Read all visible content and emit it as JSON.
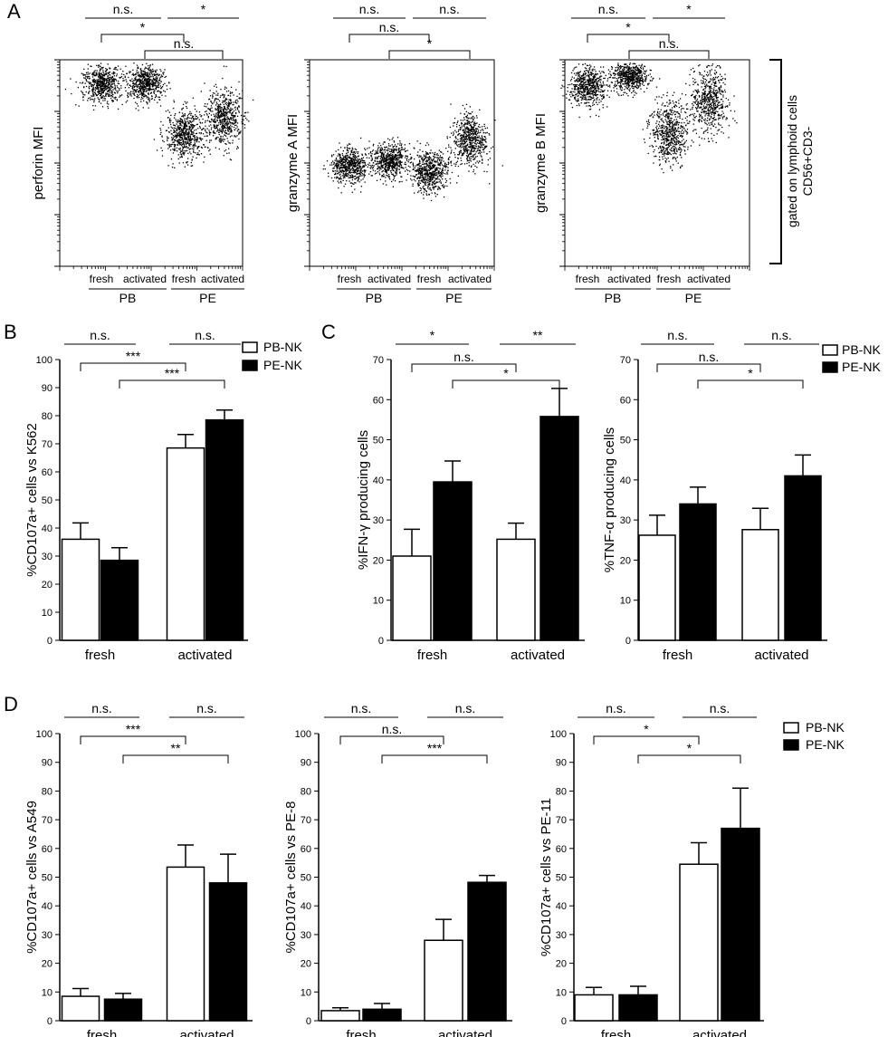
{
  "panels": {
    "A": "A",
    "B": "B",
    "C": "C",
    "D": "D"
  },
  "groups": [
    "PB",
    "PE"
  ],
  "conditions": [
    "fresh",
    "activated"
  ],
  "legend": [
    "PB-NK",
    "PE-NK"
  ],
  "colors": {
    "pb": "#ffffff",
    "pe": "#000000",
    "axis": "#000000"
  },
  "gating_note": [
    "gated on lymphoid cells",
    "CD56+CD3-"
  ],
  "chart_data": [
    {
      "id": "A1",
      "panel": "A",
      "type": "scatter",
      "scale": "log",
      "ylabel": "perforin MFI",
      "categories": [
        "fresh",
        "activated",
        "fresh",
        "activated"
      ],
      "group_labels": [
        "PB",
        "PE"
      ],
      "log_centers": [
        3.55,
        3.55,
        2.55,
        2.9
      ],
      "log_spread": [
        0.35,
        0.3,
        0.45,
        0.5
      ],
      "annotations": [
        {
          "a": 0,
          "b": 1,
          "text": "n.s."
        },
        {
          "a": 2,
          "b": 3,
          "text": "*"
        },
        {
          "a": 0,
          "b": 2,
          "text": "*"
        },
        {
          "a": 1,
          "b": 3,
          "text": "n.s."
        }
      ]
    },
    {
      "id": "A2",
      "panel": "A",
      "type": "scatter",
      "scale": "log",
      "ylabel": "granzyme A MFI",
      "categories": [
        "fresh",
        "activated",
        "fresh",
        "activated"
      ],
      "group_labels": [
        "PB",
        "PE"
      ],
      "log_centers": [
        1.95,
        2.05,
        1.85,
        2.45
      ],
      "log_spread": [
        0.3,
        0.3,
        0.35,
        0.45
      ],
      "annotations": [
        {
          "a": 0,
          "b": 1,
          "text": "n.s."
        },
        {
          "a": 2,
          "b": 3,
          "text": "n.s."
        },
        {
          "a": 0,
          "b": 2,
          "text": "n.s."
        },
        {
          "a": 1,
          "b": 3,
          "text": "*"
        }
      ]
    },
    {
      "id": "A3",
      "panel": "A",
      "type": "scatter",
      "scale": "log",
      "ylabel": "granzyme B MFI",
      "categories": [
        "fresh",
        "activated",
        "fresh",
        "activated"
      ],
      "group_labels": [
        "PB",
        "PE"
      ],
      "log_centers": [
        3.5,
        3.7,
        2.6,
        3.2
      ],
      "log_spread": [
        0.35,
        0.25,
        0.55,
        0.6
      ],
      "annotations": [
        {
          "a": 0,
          "b": 1,
          "text": "n.s."
        },
        {
          "a": 2,
          "b": 3,
          "text": "*"
        },
        {
          "a": 0,
          "b": 2,
          "text": "*"
        },
        {
          "a": 1,
          "b": 3,
          "text": "n.s."
        }
      ]
    },
    {
      "id": "B",
      "panel": "B",
      "type": "bar",
      "ylabel": "%CD107a+ cells vs K562",
      "ylim": [
        0,
        100
      ],
      "ytick_step": 10,
      "categories": [
        "fresh",
        "activated"
      ],
      "series": [
        {
          "name": "PB-NK",
          "values": [
            36,
            68.5
          ],
          "errors": [
            5.8,
            4.8
          ]
        },
        {
          "name": "PE-NK",
          "values": [
            28.5,
            78.5
          ],
          "errors": [
            4.5,
            3.5
          ]
        }
      ],
      "annotations": [
        {
          "a": 0,
          "b": 1,
          "text": "n.s."
        },
        {
          "a": 2,
          "b": 3,
          "text": "n.s."
        },
        {
          "a": 0,
          "b": 2,
          "text": "***"
        },
        {
          "a": 1,
          "b": 3,
          "text": "***"
        }
      ],
      "legend": true
    },
    {
      "id": "C1",
      "panel": "C",
      "type": "bar",
      "ylabel": "%IFN-γ producing cells",
      "ylim": [
        0,
        70
      ],
      "ytick_step": 10,
      "categories": [
        "fresh",
        "activated"
      ],
      "series": [
        {
          "name": "PB-NK",
          "values": [
            21,
            25.2
          ],
          "errors": [
            6.7,
            4.0
          ]
        },
        {
          "name": "PE-NK",
          "values": [
            39.5,
            55.8
          ],
          "errors": [
            5.2,
            7.0
          ]
        }
      ],
      "annotations": [
        {
          "a": 0,
          "b": 1,
          "text": "*"
        },
        {
          "a": 2,
          "b": 3,
          "text": "**"
        },
        {
          "a": 0,
          "b": 2,
          "text": "n.s."
        },
        {
          "a": 1,
          "b": 3,
          "text": "*"
        }
      ]
    },
    {
      "id": "C2",
      "panel": "C",
      "type": "bar",
      "ylabel": "%TNF-α producing cells",
      "ylim": [
        0,
        70
      ],
      "ytick_step": 10,
      "categories": [
        "fresh",
        "activated"
      ],
      "series": [
        {
          "name": "PB-NK",
          "values": [
            26.2,
            27.6
          ],
          "errors": [
            5.0,
            5.3
          ]
        },
        {
          "name": "PE-NK",
          "values": [
            34,
            41
          ],
          "errors": [
            4.2,
            5.2
          ]
        }
      ],
      "annotations": [
        {
          "a": 0,
          "b": 1,
          "text": "n.s."
        },
        {
          "a": 2,
          "b": 3,
          "text": "n.s."
        },
        {
          "a": 0,
          "b": 2,
          "text": "n.s."
        },
        {
          "a": 1,
          "b": 3,
          "text": "*"
        }
      ],
      "legend": true
    },
    {
      "id": "D1",
      "panel": "D",
      "type": "bar",
      "ylabel": "%CD107a+ cells vs A549",
      "ylim": [
        0,
        100
      ],
      "ytick_step": 10,
      "categories": [
        "fresh",
        "activated"
      ],
      "series": [
        {
          "name": "PB-NK",
          "values": [
            8.5,
            53.5
          ],
          "errors": [
            2.7,
            7.7
          ]
        },
        {
          "name": "PE-NK",
          "values": [
            7.5,
            48
          ],
          "errors": [
            2.0,
            10.0
          ]
        }
      ],
      "annotations": [
        {
          "a": 0,
          "b": 1,
          "text": "n.s."
        },
        {
          "a": 2,
          "b": 3,
          "text": "n.s."
        },
        {
          "a": 0,
          "b": 2,
          "text": "***"
        },
        {
          "a": 1,
          "b": 3,
          "text": "**"
        }
      ]
    },
    {
      "id": "D2",
      "panel": "D",
      "type": "bar",
      "ylabel": "%CD107a+ cells vs PE-8",
      "ylim": [
        0,
        100
      ],
      "ytick_step": 10,
      "categories": [
        "fresh",
        "activated"
      ],
      "series": [
        {
          "name": "PB-NK",
          "values": [
            3.5,
            28
          ],
          "errors": [
            1.0,
            7.3
          ]
        },
        {
          "name": "PE-NK",
          "values": [
            4,
            48.2
          ],
          "errors": [
            2.0,
            2.4
          ]
        }
      ],
      "annotations": [
        {
          "a": 0,
          "b": 1,
          "text": "n.s."
        },
        {
          "a": 2,
          "b": 3,
          "text": "n.s."
        },
        {
          "a": 0,
          "b": 2,
          "text": "n.s."
        },
        {
          "a": 1,
          "b": 3,
          "text": "***"
        }
      ]
    },
    {
      "id": "D3",
      "panel": "D",
      "type": "bar",
      "ylabel": "%CD107a+ cells vs PE-11",
      "ylim": [
        0,
        100
      ],
      "ytick_step": 10,
      "categories": [
        "fresh",
        "activated"
      ],
      "series": [
        {
          "name": "PB-NK",
          "values": [
            9,
            54.5
          ],
          "errors": [
            2.6,
            7.5
          ]
        },
        {
          "name": "PE-NK",
          "values": [
            9,
            67
          ],
          "errors": [
            3.0,
            14.0
          ]
        }
      ],
      "annotations": [
        {
          "a": 0,
          "b": 1,
          "text": "n.s."
        },
        {
          "a": 2,
          "b": 3,
          "text": "n.s."
        },
        {
          "a": 0,
          "b": 2,
          "text": "*"
        },
        {
          "a": 1,
          "b": 3,
          "text": "*"
        }
      ],
      "legend": true
    }
  ]
}
